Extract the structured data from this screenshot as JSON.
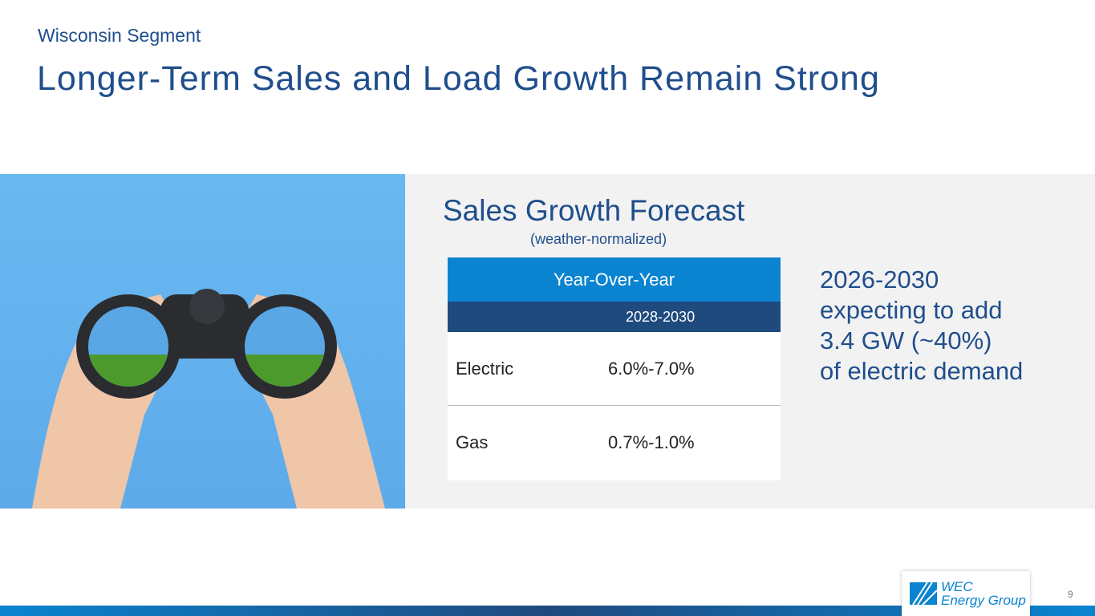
{
  "header": {
    "kicker": "Wisconsin Segment",
    "title": "Longer-Term Sales and Load Growth Remain Strong"
  },
  "forecast": {
    "title": "Sales Growth Forecast",
    "subtitle": "(weather-normalized)",
    "table": {
      "header": "Year-Over-Year",
      "period": "2028-2030",
      "rows": [
        {
          "label": "Electric",
          "value": "6.0%-7.0%"
        },
        {
          "label": "Gas",
          "value": "0.7%-1.0%"
        }
      ]
    }
  },
  "note": {
    "lines": [
      "2026-2030",
      "expecting to add",
      "3.4 GW (~40%)",
      "of electric demand"
    ]
  },
  "footer": {
    "page": "9",
    "logo": {
      "line1": "WEC",
      "line2": "Energy Group"
    }
  },
  "colors": {
    "primary": "#1f4e8c",
    "accent": "#0a84d0",
    "dark": "#1f4a7e"
  }
}
